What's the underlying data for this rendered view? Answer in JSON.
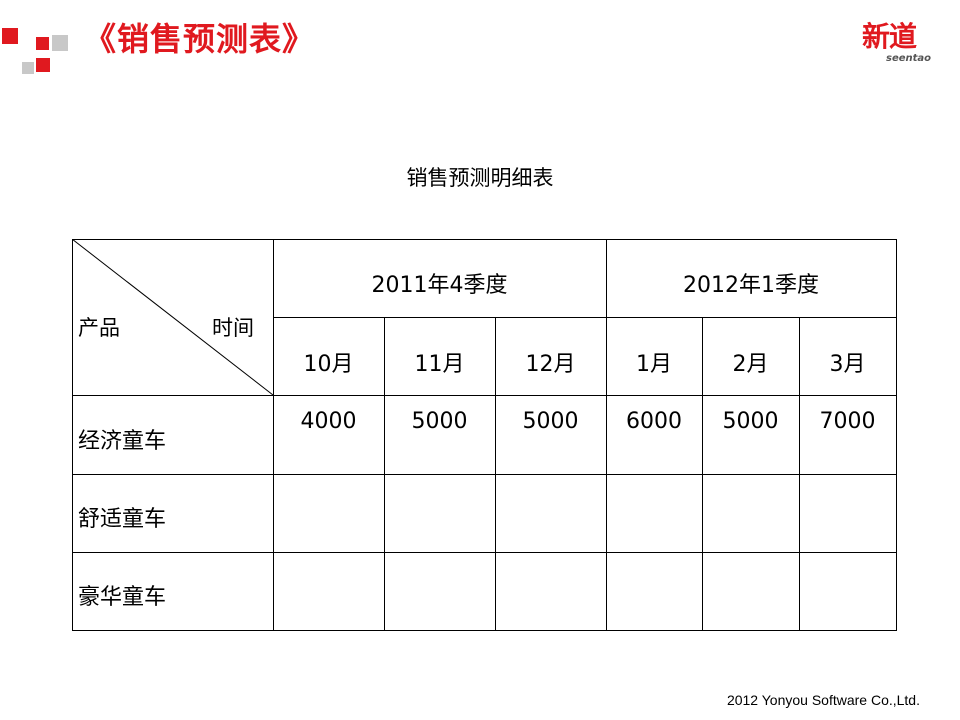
{
  "slide": {
    "title": "《销售预测表》",
    "logo_text": "新道",
    "logo_subtext": "seentao",
    "table_title": "销售预测明细表",
    "footer": "2012 Yonyou Software Co.,Ltd."
  },
  "colors": {
    "brand_red": "#e0191f",
    "decor_gray": "#c8c8c8"
  },
  "table": {
    "corner_left": "产品",
    "corner_right": "时间",
    "quarters": [
      "2011年4季度",
      "2012年1季度"
    ],
    "months": [
      "10月",
      "11月",
      "12月",
      "1月",
      "2月",
      "3月"
    ],
    "rows": [
      {
        "label": "经济童车",
        "values": [
          "4000",
          "5000",
          "5000",
          "6000",
          "5000",
          "7000"
        ]
      },
      {
        "label": "舒适童车",
        "values": [
          "",
          "",
          "",
          "",
          "",
          ""
        ]
      },
      {
        "label": "豪华童车",
        "values": [
          "",
          "",
          "",
          "",
          "",
          ""
        ]
      }
    ]
  }
}
